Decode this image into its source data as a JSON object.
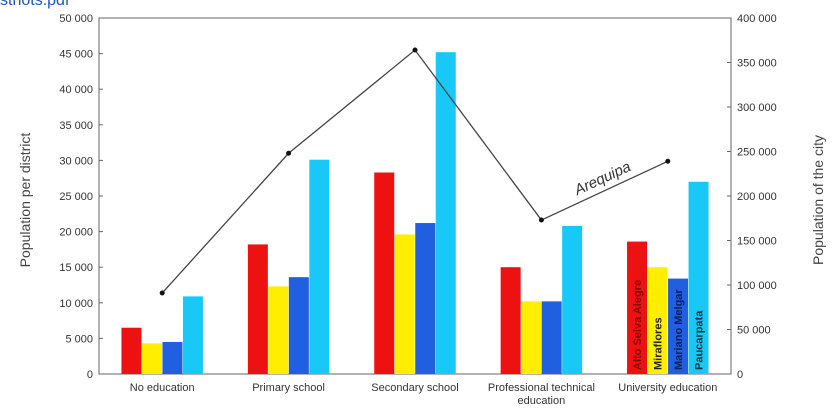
{
  "page": {
    "top_text": "sthots.pdf"
  },
  "chart_data": {
    "type": "bar",
    "categories": [
      "No education",
      "Primary school",
      "Secondary school",
      "Professional technical education",
      "University education"
    ],
    "category_lines": [
      [
        "No education"
      ],
      [
        "Primary school"
      ],
      [
        "Secondary school"
      ],
      [
        "Professional technical",
        "education"
      ],
      [
        "University education"
      ]
    ],
    "series": [
      {
        "name": "Alto Selva Alegre",
        "color": "#ee1111",
        "label_color": "#8a0000",
        "values": [
          6500,
          18200,
          28300,
          15000,
          18600
        ]
      },
      {
        "name": "Miraflores",
        "color": "#ffee00",
        "label_color": "#222222",
        "values": [
          4300,
          12300,
          19600,
          10200,
          15000
        ]
      },
      {
        "name": "Mariano Melgar",
        "color": "#1f5fe0",
        "label_color": "#0b1f5c",
        "values": [
          4500,
          13600,
          21200,
          10200,
          13400
        ]
      },
      {
        "name": "Paucarpata",
        "color": "#18c8f6",
        "label_color": "#0b2f3a",
        "values": [
          10900,
          30100,
          45200,
          20800,
          27000
        ]
      }
    ],
    "line": {
      "name": "Arequipa",
      "axis": "right",
      "values": [
        91000,
        248000,
        364000,
        173000,
        239000
      ]
    },
    "ylabel": "Population per district",
    "y2label": "Population of the city",
    "ylim": [
      0,
      50000
    ],
    "y2lim": [
      0,
      400000
    ],
    "yticks": [
      0,
      5000,
      10000,
      15000,
      20000,
      25000,
      30000,
      35000,
      40000,
      45000,
      50000
    ],
    "yticklabels": [
      "0",
      "5 000",
      "10 000",
      "15 000",
      "20 000",
      "25 000",
      "30 000",
      "35 000",
      "40 000",
      "45 000",
      "50 000"
    ],
    "y2ticks": [
      0,
      50000,
      100000,
      150000,
      200000,
      250000,
      300000,
      350000,
      400000
    ],
    "y2ticklabels": [
      "0",
      "50 000",
      "100 000",
      "150 000",
      "200 000",
      "250 000",
      "300 000",
      "350 000",
      "400 000"
    ],
    "grid": false,
    "legend": "series names written vertically inside the University education bars; line labelled Arequipa"
  }
}
